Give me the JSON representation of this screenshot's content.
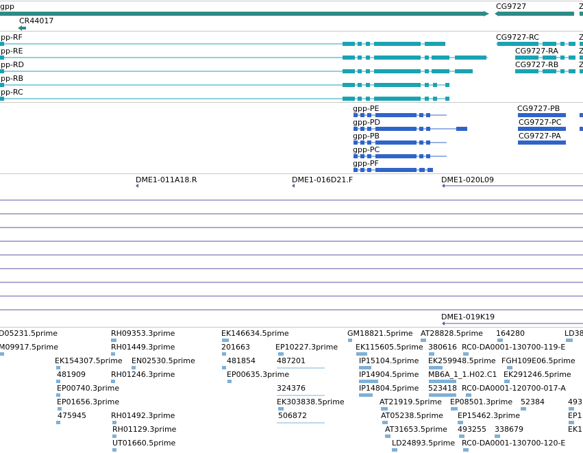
{
  "colors": {
    "gene": "#2e8b87",
    "transcript": "#1aa3b3",
    "protein": "#2f64c8",
    "clone": "#6a4fa8",
    "est": "#7fb0d6",
    "separator": "#c8c8c8"
  },
  "tracks": {
    "genes": {
      "labels": [
        "gpp",
        "CR44017",
        "CG9727",
        "Z"
      ]
    },
    "transcripts": {
      "labels": [
        "gpp-RF",
        "gpp-RE",
        "gpp-RD",
        "gpp-RB",
        "gpp-RC",
        "CG9727-RC",
        "CG9727-RA",
        "CG9727-RB",
        "Z",
        "Z",
        "Z"
      ]
    },
    "proteins": {
      "labels": [
        "gpp-PE",
        "gpp-PD",
        "gpp-PB",
        "gpp-PC",
        "gpp-PF",
        "CG9727-PB",
        "CG9727-PC",
        "CG9727-PA"
      ]
    },
    "clones": {
      "labels": [
        "DME1-011A18.R",
        "DME1-016D21.F",
        "DME1-020L09",
        "DME1-019K19"
      ]
    },
    "ests": {
      "labels": [
        "D05231.5prime",
        "M09917.5prime",
        "RH09353.3prime",
        "RH01449.3prime",
        "EK146634.5prime",
        "201663",
        "EP10227.3prime",
        "GM18821.5prime",
        "AT28828.5prime",
        "164280",
        "LD38",
        "EK115605.5prime",
        "380616",
        "RC0-DA0001-130700-119-E",
        "EK154307.5prime",
        "EN02530.5prime",
        "481854",
        "487201",
        "IP15104.5prime",
        "EK259948.5prime",
        "FGH109E06.5prime",
        "481909",
        "RH01246.3prime",
        "EP00635.3prime",
        "IP14904.5prime",
        "MB6A_1_1.H02.C1",
        "EK291246.5prime",
        "EP00740.3prime",
        "324376",
        "IP14804.5prime",
        "523418",
        "RC0-DA0001-120700-017-A",
        "EP01656.3prime",
        "EK303838.5prime",
        "AT21919.5prime",
        "EP08501.3prime",
        "52384",
        "493",
        "475945",
        "RH01492.3prime",
        "506872",
        "AT05238.5prime",
        "EP15462.3prime",
        "EP1",
        "RH01129.3prime",
        "AT31653.5prime",
        "493255",
        "338679",
        "EK1",
        "UT01660.5prime",
        "LD24893.5prime",
        "RC0-DA0001-130700-120-E"
      ]
    }
  }
}
